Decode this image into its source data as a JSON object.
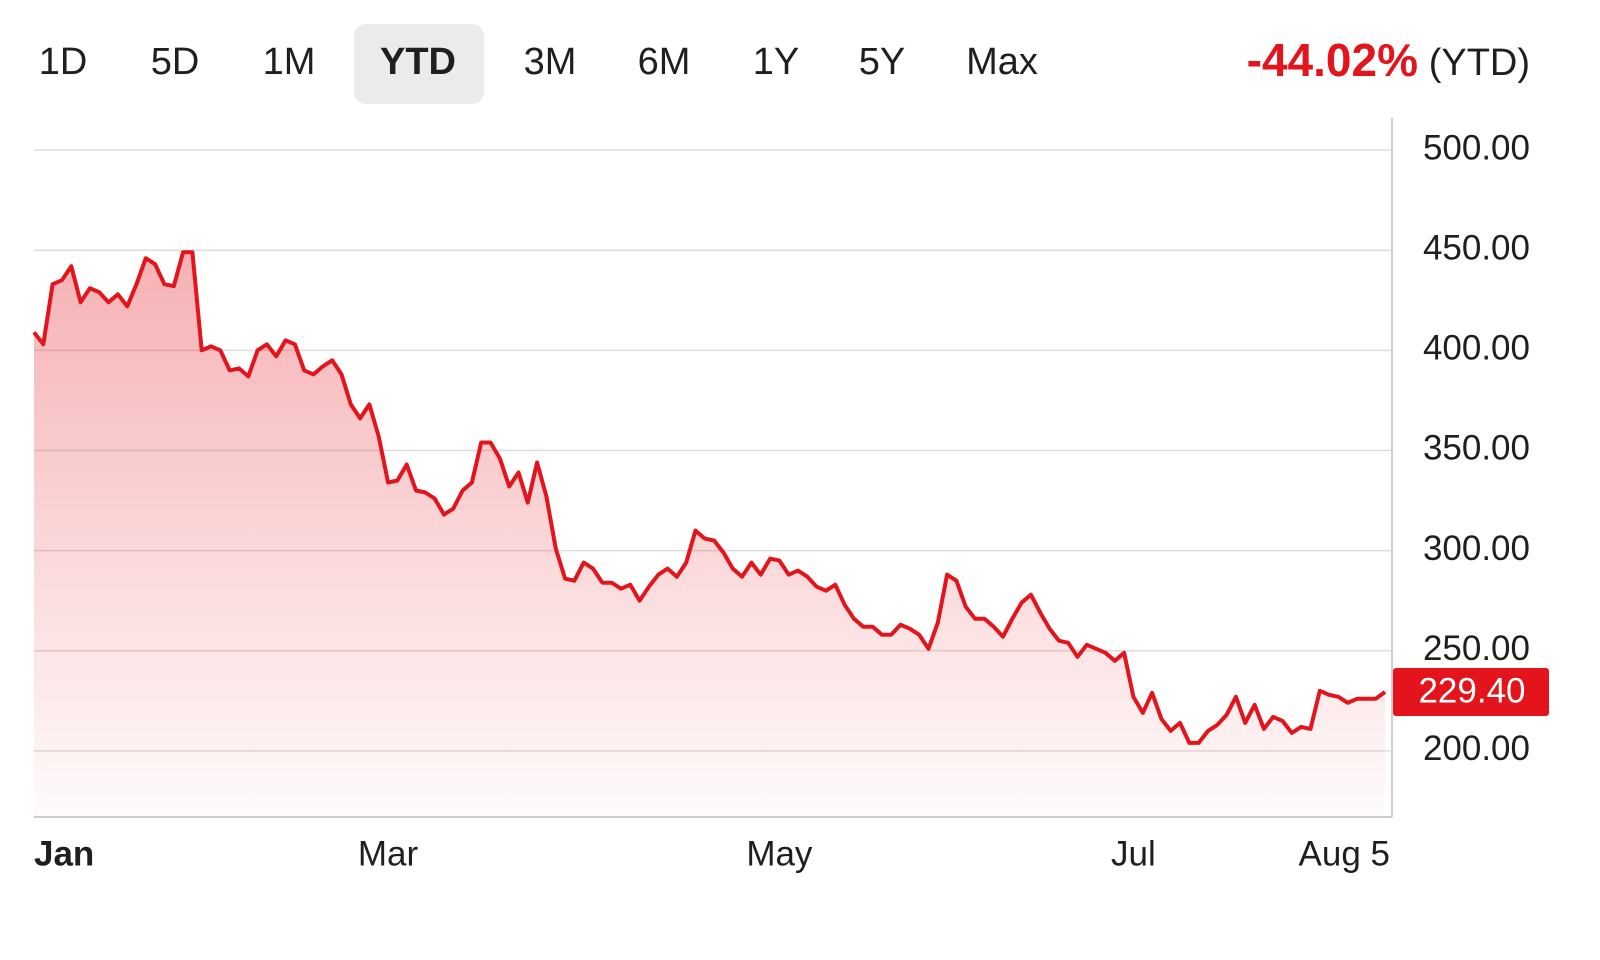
{
  "range_tabs": {
    "items": [
      "1D",
      "5D",
      "1M",
      "YTD",
      "3M",
      "6M",
      "1Y",
      "5Y",
      "Max"
    ],
    "selected": 3
  },
  "change": {
    "value": "-44.02%",
    "period": "(YTD)"
  },
  "chart_data": {
    "type": "line",
    "color": "#e3141c",
    "categories": [
      "Jan",
      null,
      null,
      null,
      null,
      null,
      null,
      null,
      null,
      null,
      null,
      null,
      null,
      null,
      null,
      null,
      null,
      null,
      null,
      null,
      null,
      null,
      null,
      null,
      null,
      null,
      null,
      null,
      null,
      null,
      null,
      null,
      null,
      null,
      null,
      null,
      null,
      null,
      "Mar",
      null,
      null,
      null,
      null,
      null,
      null,
      null,
      null,
      null,
      null,
      null,
      null,
      null,
      null,
      null,
      null,
      null,
      null,
      null,
      null,
      null,
      null,
      null,
      null,
      null,
      null,
      null,
      null,
      null,
      null,
      null,
      null,
      null,
      null,
      null,
      null,
      null,
      null,
      null,
      null,
      null,
      "May",
      null,
      null,
      null,
      null,
      null,
      null,
      null,
      null,
      null,
      null,
      null,
      null,
      null,
      null,
      null,
      null,
      null,
      null,
      null,
      null,
      null,
      null,
      null,
      null,
      null,
      null,
      null,
      null,
      null,
      null,
      null,
      null,
      null,
      null,
      null,
      null,
      null,
      "Jul",
      null,
      null,
      null,
      null,
      null,
      null,
      null,
      null,
      null,
      null,
      null,
      null,
      null,
      null,
      null,
      null,
      null,
      null,
      null,
      null,
      null,
      null,
      null,
      null,
      null,
      null,
      "Aug 5"
    ],
    "values": [
      409,
      403,
      433,
      435,
      442,
      424,
      431,
      429,
      424,
      428,
      422,
      433,
      446,
      443,
      433,
      432,
      449,
      449,
      400,
      402,
      400,
      390,
      391,
      387,
      400,
      403,
      397,
      405,
      403,
      390,
      388,
      392,
      395,
      388,
      373,
      366,
      373,
      357,
      334,
      335,
      343,
      330,
      329,
      326,
      318,
      321,
      330,
      334,
      354,
      354,
      346,
      332,
      339,
      324,
      344,
      327,
      301,
      286,
      285,
      294,
      291,
      284,
      284,
      281,
      283,
      275,
      282,
      288,
      291,
      287,
      294,
      310,
      306,
      305,
      299,
      291,
      287,
      294,
      288,
      296,
      295,
      288,
      290,
      287,
      282,
      280,
      283,
      273,
      266,
      262,
      262,
      258,
      258,
      263,
      261,
      258,
      251,
      264,
      288,
      285,
      272,
      266,
      266,
      262,
      257,
      266,
      274,
      278,
      269,
      261,
      255,
      254,
      247,
      253,
      251,
      249,
      245,
      249,
      227,
      219,
      229,
      216,
      210,
      214,
      204,
      204,
      210,
      213,
      218,
      227,
      214,
      223,
      211,
      217,
      215,
      209,
      212,
      211,
      230,
      228,
      227,
      224,
      226,
      226,
      226,
      229.4
    ],
    "value_labels": [
      null,
      null,
      null,
      null,
      null,
      null,
      null,
      null,
      null,
      null,
      null,
      null,
      null,
      null,
      null,
      null,
      null,
      null,
      null,
      null,
      null,
      null,
      null,
      null,
      null,
      null,
      null,
      null,
      null,
      null,
      null,
      null,
      null,
      null,
      null,
      null,
      null,
      null,
      null,
      null,
      null,
      null,
      null,
      null,
      null,
      null,
      null,
      null,
      null,
      null,
      null,
      null,
      null,
      null,
      null,
      null,
      null,
      null,
      null,
      null,
      null,
      null,
      null,
      null,
      null,
      null,
      null,
      null,
      null,
      null,
      null,
      null,
      null,
      null,
      null,
      null,
      null,
      null,
      null,
      null,
      null,
      null,
      null,
      null,
      null,
      null,
      null,
      null,
      null,
      null,
      null,
      null,
      null,
      null,
      null,
      null,
      null,
      null,
      null,
      null,
      null,
      null,
      null,
      null,
      null,
      null,
      null,
      null,
      null,
      null,
      null,
      null,
      null,
      null,
      null,
      null,
      null,
      null,
      null,
      null,
      null,
      null,
      null,
      null,
      null,
      null,
      null,
      null,
      null,
      null,
      null,
      null,
      null,
      null,
      null,
      null,
      null,
      null,
      null,
      null,
      null,
      null,
      null,
      null,
      null,
      "229.40"
    ],
    "ylim": [
      167,
      516
    ],
    "yticks": [
      {
        "value": 200,
        "label": "200.00"
      },
      {
        "value": 250,
        "label": "250.00"
      },
      {
        "value": 300,
        "label": "300.00"
      },
      {
        "value": 350,
        "label": "350.00"
      },
      {
        "value": 400,
        "label": "400.00"
      },
      {
        "value": 450,
        "label": "450.00"
      },
      {
        "value": 500,
        "label": "500.00"
      }
    ],
    "grid": true
  }
}
